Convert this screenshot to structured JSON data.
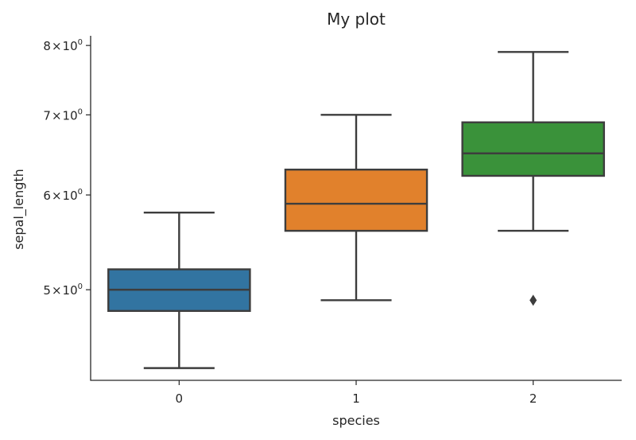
{
  "chart_data": {
    "type": "box",
    "title": "My plot",
    "xlabel": "species",
    "ylabel": "sepal_length",
    "yscale": "log",
    "ylim": [
      4.2,
      8.15
    ],
    "categories": [
      "0",
      "1",
      "2"
    ],
    "yticks": [
      {
        "value": 5,
        "base": "5",
        "times": "×",
        "mant": "10",
        "exp": "0"
      },
      {
        "value": 6,
        "base": "6",
        "times": "×",
        "mant": "10",
        "exp": "0"
      },
      {
        "value": 7,
        "base": "7",
        "times": "×",
        "mant": "10",
        "exp": "0"
      },
      {
        "value": 8,
        "base": "8",
        "times": "×",
        "mant": "10",
        "exp": "0"
      }
    ],
    "boxes": [
      {
        "category": "0",
        "color": "#3274a1",
        "whisker_low": 4.3,
        "q1": 4.8,
        "median": 5.0,
        "q3": 5.2,
        "whisker_high": 5.8,
        "outliers": []
      },
      {
        "category": "1",
        "color": "#e1812c",
        "whisker_low": 4.9,
        "q1": 5.6,
        "median": 5.9,
        "q3": 6.3,
        "whisker_high": 7.0,
        "outliers": []
      },
      {
        "category": "2",
        "color": "#3a923a",
        "whisker_low": 5.6,
        "q1": 6.225,
        "median": 6.5,
        "q3": 6.9,
        "whisker_high": 7.9,
        "outliers": [
          4.9
        ]
      }
    ],
    "grid": false
  }
}
